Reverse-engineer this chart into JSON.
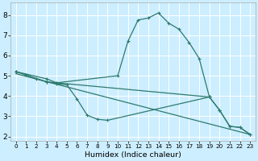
{
  "xlabel": "Humidex (Indice chaleur)",
  "bg_color": "#cceeff",
  "grid_color": "#ffffff",
  "line_color": "#2d7a6e",
  "xlim": [
    -0.5,
    23.5
  ],
  "ylim": [
    1.8,
    8.6
  ],
  "xticks": [
    0,
    1,
    2,
    3,
    4,
    5,
    6,
    7,
    8,
    9,
    10,
    11,
    12,
    13,
    14,
    15,
    16,
    17,
    18,
    19,
    20,
    21,
    22,
    23
  ],
  "yticks": [
    2,
    3,
    4,
    5,
    6,
    7,
    8
  ],
  "curve1_x": [
    0,
    1,
    2,
    3,
    4,
    10,
    11,
    12,
    13,
    14,
    15,
    16,
    17,
    18,
    19
  ],
  "curve1_y": [
    5.2,
    5.05,
    4.85,
    4.7,
    4.65,
    5.0,
    6.7,
    7.75,
    7.85,
    8.1,
    7.6,
    7.3,
    6.65,
    5.85,
    3.95
  ],
  "curve2_x": [
    0,
    3,
    4,
    19,
    20,
    21,
    22,
    23
  ],
  "curve2_y": [
    5.2,
    4.85,
    4.65,
    3.95,
    3.3,
    2.5,
    2.45,
    2.1
  ],
  "curve3_x": [
    0,
    23
  ],
  "curve3_y": [
    5.1,
    2.1
  ],
  "curve4_x": [
    0,
    3,
    4,
    5,
    6,
    7,
    8,
    9,
    19,
    20,
    21,
    22,
    23
  ],
  "curve4_y": [
    5.2,
    4.7,
    4.6,
    4.55,
    3.85,
    3.05,
    2.85,
    2.8,
    3.95,
    3.3,
    2.5,
    2.45,
    2.1
  ],
  "markersize": 3,
  "linewidth": 0.9,
  "tick_fontsize_x": 5.2,
  "tick_fontsize_y": 6.5,
  "xlabel_fontsize": 6.8
}
